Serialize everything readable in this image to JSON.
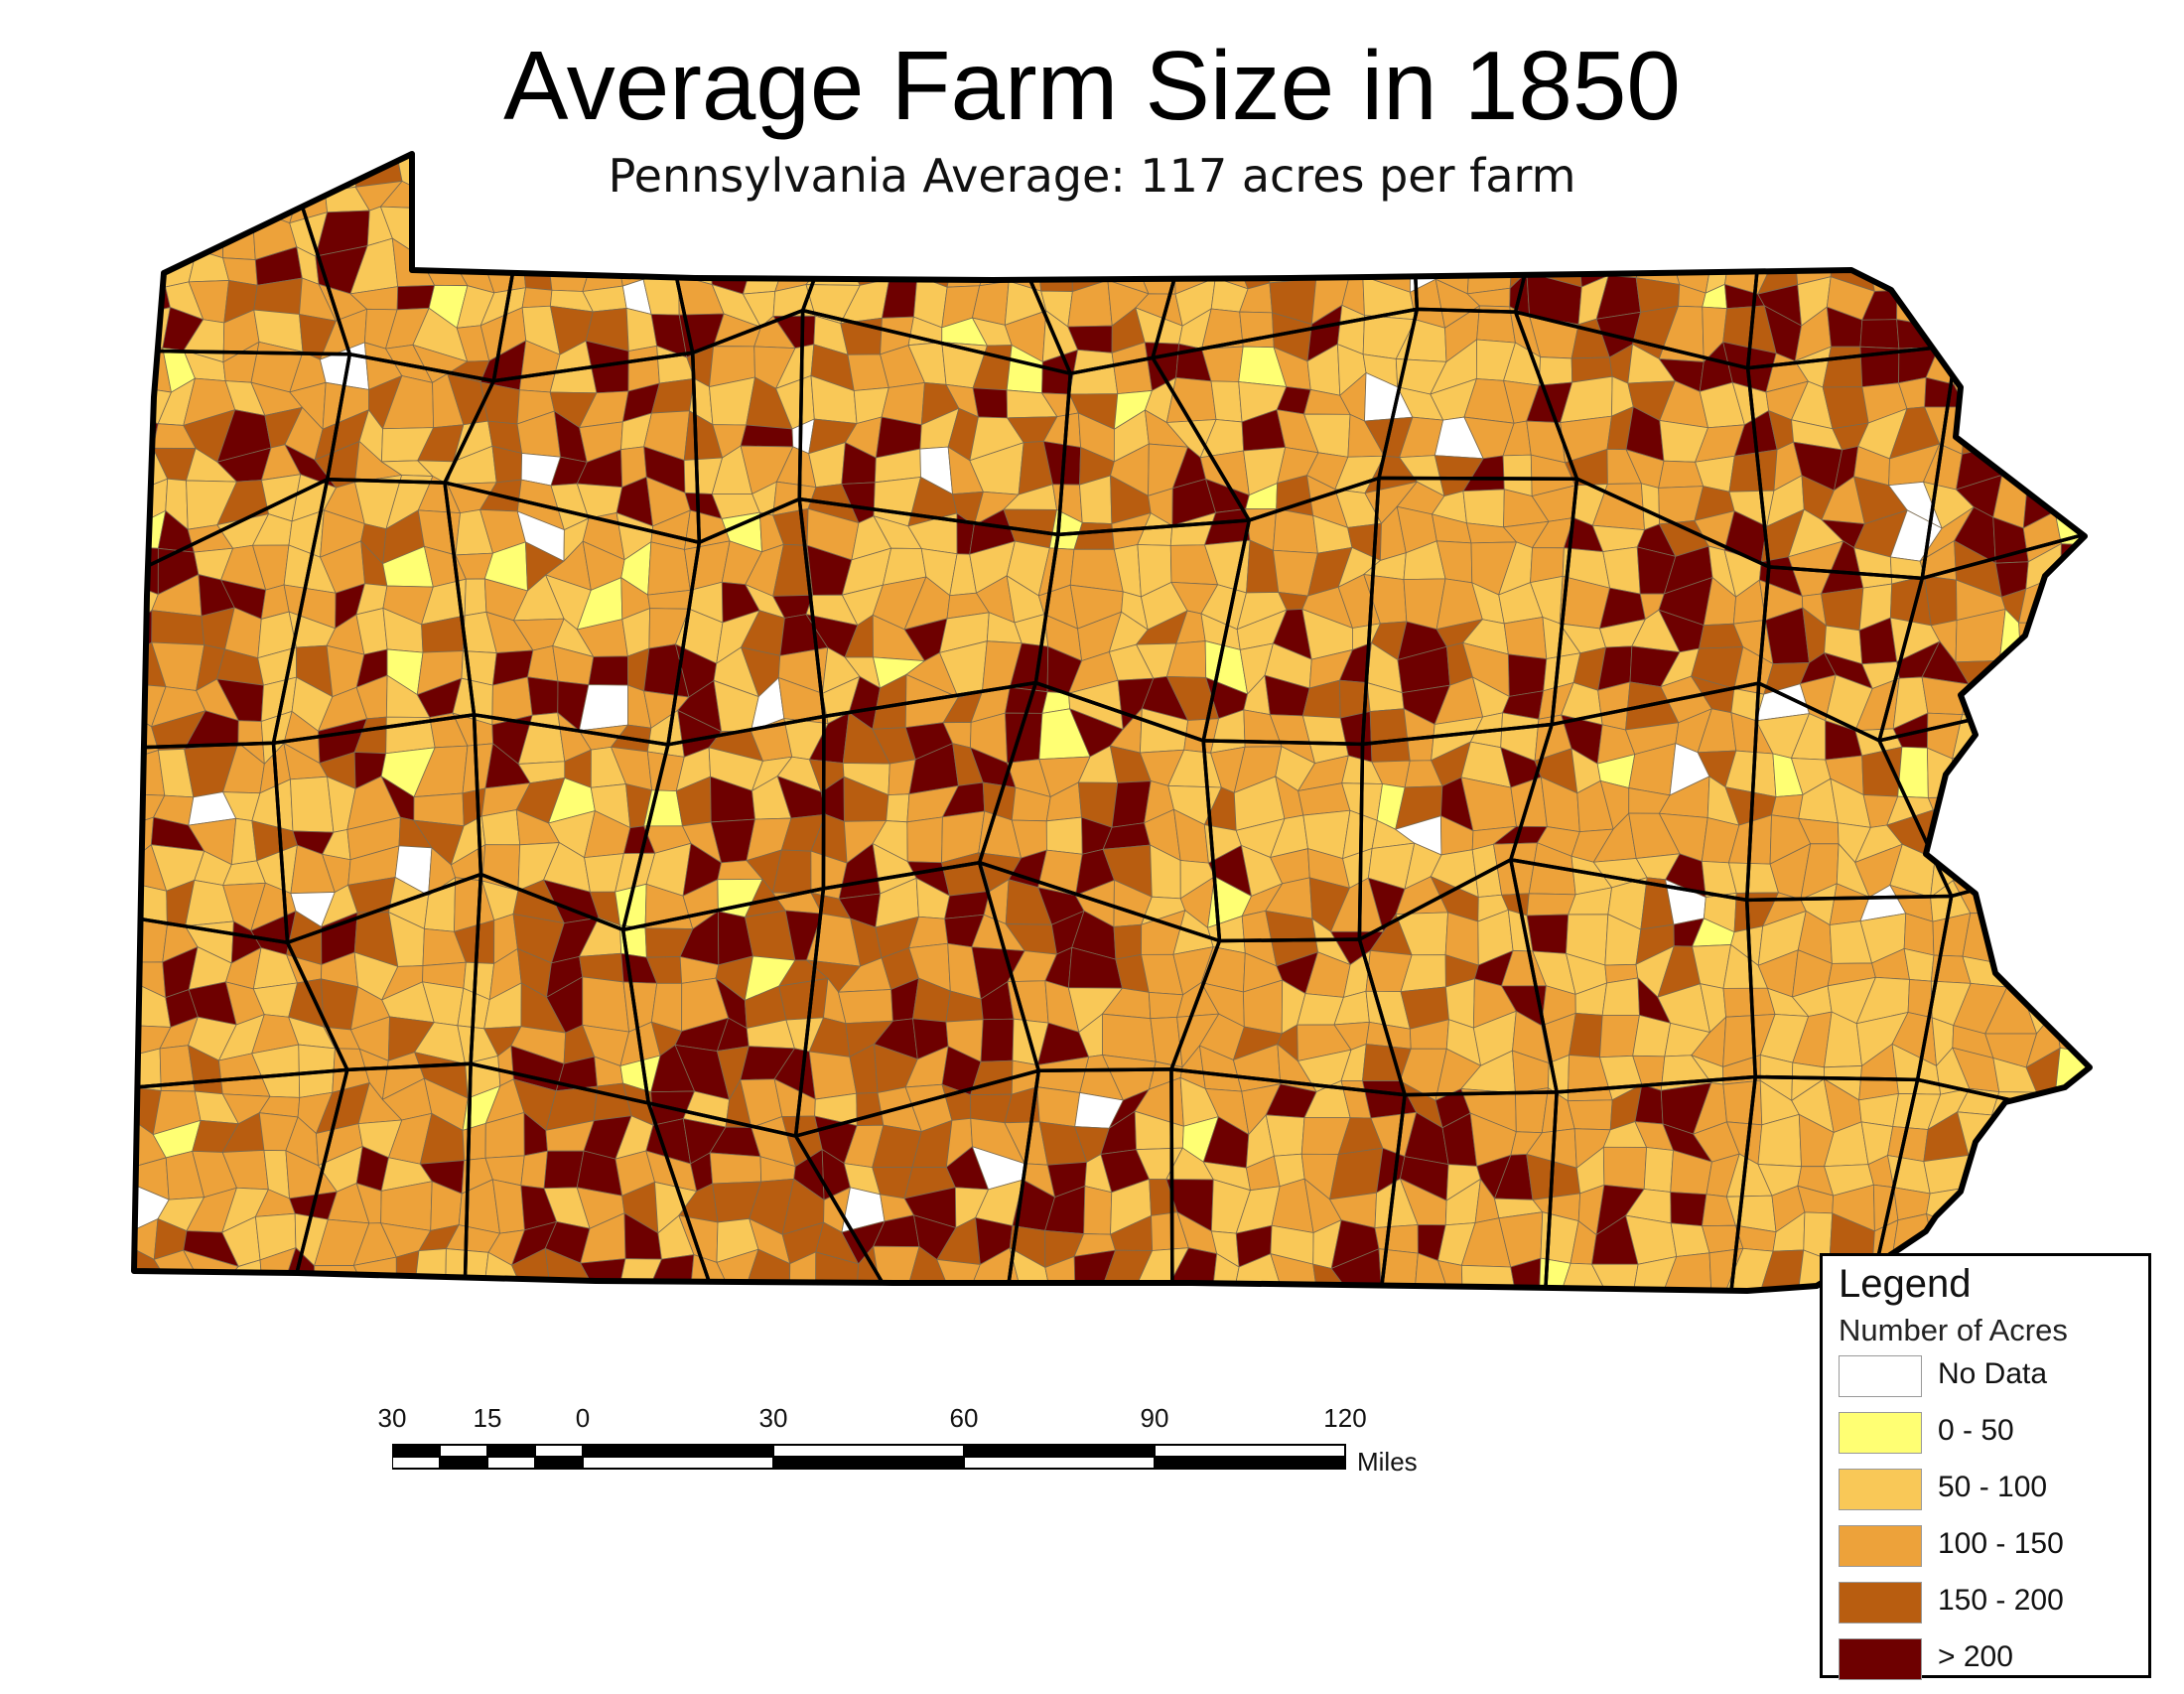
{
  "title": "Average Farm Size in 1850",
  "subtitle": "Pennsylvania Average:  117 acres per farm",
  "legend": {
    "title": "Legend",
    "subtitle": "Number of Acres",
    "items": [
      {
        "label": "No Data",
        "color": "#ffffff"
      },
      {
        "label": "0 - 50",
        "color": "#ffff73"
      },
      {
        "label": "50 - 100",
        "color": "#f9c857"
      },
      {
        "label": "100 - 150",
        "color": "#eda23a"
      },
      {
        "label": "150 - 200",
        "color": "#b85d10"
      },
      {
        "label": "> 200",
        "color": "#6e0000"
      }
    ]
  },
  "scale_bar": {
    "ticks": [
      "30",
      "15",
      "0",
      "30",
      "60",
      "90",
      "120"
    ],
    "unit": "Miles"
  },
  "map_colors": {
    "county_border": "#000000",
    "township_border": "#7a6a50"
  }
}
